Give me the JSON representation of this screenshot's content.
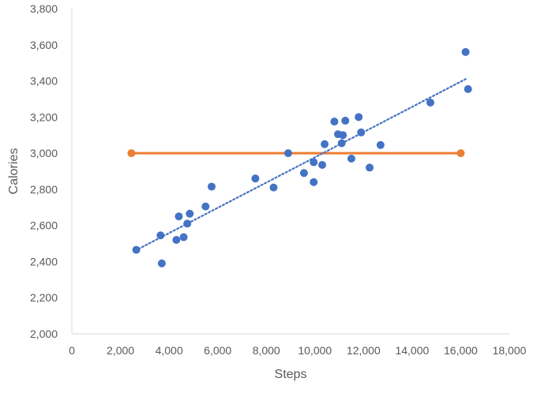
{
  "chart_data": {
    "type": "scatter",
    "title": "",
    "xlabel": "Steps",
    "ylabel": "Calories",
    "xlim": [
      0,
      18000
    ],
    "ylim": [
      2000,
      3800
    ],
    "x_ticks": [
      0,
      2000,
      4000,
      6000,
      8000,
      10000,
      12000,
      14000,
      16000,
      18000
    ],
    "y_ticks": [
      2000,
      2200,
      2400,
      2600,
      2800,
      3000,
      3200,
      3400,
      3600,
      3800
    ],
    "x_tick_labels": [
      "0",
      "2,000",
      "4,000",
      "6,000",
      "8,000",
      "10,000",
      "12,000",
      "14,000",
      "16,000",
      "18,000"
    ],
    "y_tick_labels": [
      "2,000",
      "2,200",
      "2,400",
      "2,600",
      "2,800",
      "3,000",
      "3,200",
      "3,400",
      "3,600",
      "3,800"
    ],
    "grid": false,
    "legend": "none",
    "colors": {
      "points": "#4472C4",
      "trendline": "#4472C4",
      "reference_line": "#ED7D31",
      "axis": "#d9d9d9",
      "text": "#595959"
    },
    "series": [
      {
        "values": [
          [
            2650,
            2465
          ],
          [
            3650,
            2545
          ],
          [
            3700,
            2390
          ],
          [
            4300,
            2520
          ],
          [
            4400,
            2650
          ],
          [
            4600,
            2535
          ],
          [
            4750,
            2610
          ],
          [
            4850,
            2665
          ],
          [
            5500,
            2705
          ],
          [
            5750,
            2815
          ],
          [
            7550,
            2860
          ],
          [
            8300,
            2810
          ],
          [
            8900,
            3000
          ],
          [
            9550,
            2890
          ],
          [
            9950,
            2840
          ],
          [
            9950,
            2950
          ],
          [
            10300,
            2935
          ],
          [
            10400,
            3050
          ],
          [
            10800,
            3175
          ],
          [
            10950,
            3105
          ],
          [
            11100,
            3055
          ],
          [
            11150,
            3100
          ],
          [
            11250,
            3180
          ],
          [
            11500,
            2970
          ],
          [
            11800,
            3200
          ],
          [
            11900,
            3115
          ],
          [
            12250,
            2920
          ],
          [
            12700,
            3045
          ],
          [
            14750,
            3280
          ],
          [
            16200,
            3560
          ],
          [
            16300,
            3355
          ]
        ]
      }
    ],
    "trendline": {
      "style": "dotted",
      "from": [
        2600,
        2460
      ],
      "to": [
        16200,
        3410
      ]
    },
    "reference_line": {
      "from": [
        2450,
        3000
      ],
      "to": [
        16000,
        3000
      ]
    }
  }
}
